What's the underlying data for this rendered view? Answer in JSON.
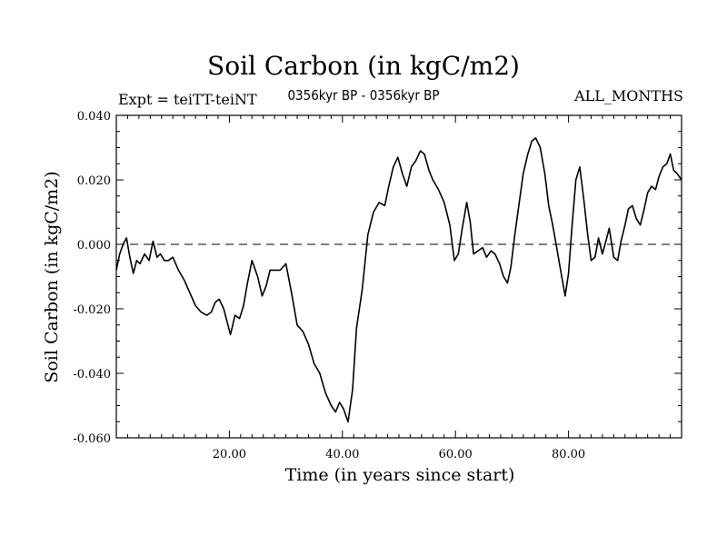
{
  "chart_data": {
    "type": "line",
    "title": "Soil Carbon (in kgC/m2)",
    "subtitle": "0356kyr BP - 0356kyr BP",
    "expt_label": "Expt = teiTT-teiNT",
    "period_label": "ALL_MONTHS",
    "xlabel": "Time (in years since start)",
    "ylabel": "Soil Carbon (in kgC/m2)",
    "xlim": [
      0,
      100
    ],
    "ylim": [
      -0.06,
      0.04
    ],
    "xticks": [
      20,
      40,
      60,
      80
    ],
    "xtick_labels": [
      "20.00",
      "40.00",
      "60.00",
      "80.00"
    ],
    "yticks": [
      0.04,
      0.02,
      0.0,
      -0.02,
      -0.04,
      -0.06
    ],
    "ytick_labels": [
      "0.040",
      "0.020",
      "0.000",
      "-0.020",
      "-0.040",
      "-0.060"
    ],
    "reference_line": {
      "y": 0.0,
      "style": "dashed"
    },
    "series": [
      {
        "name": "Soil Carbon",
        "x": [
          0,
          0.6,
          1.2,
          1.8,
          2.4,
          3.0,
          3.6,
          4.2,
          5.0,
          5.8,
          6.5,
          7.2,
          7.8,
          8.5,
          9.2,
          10.0,
          11.0,
          12.0,
          13.0,
          14.0,
          15.0,
          16.0,
          16.8,
          17.5,
          18.2,
          19.0,
          19.6,
          20.2,
          21.0,
          21.8,
          22.5,
          23.2,
          24.0,
          25.0,
          25.8,
          26.5,
          27.2,
          28.0,
          29.0,
          30.0,
          31.0,
          32.0,
          33.0,
          34.0,
          35.0,
          36.0,
          37.0,
          38.0,
          38.8,
          39.5,
          40.2,
          41.0,
          41.8,
          42.5,
          43.5,
          44.5,
          45.5,
          46.5,
          47.5,
          48.2,
          49.0,
          49.8,
          50.6,
          51.4,
          52.2,
          53.0,
          53.8,
          54.5,
          55.3,
          56.0,
          57.0,
          58.0,
          59.0,
          59.8,
          60.5,
          61.2,
          62.0,
          62.6,
          63.2,
          64.0,
          64.8,
          65.5,
          66.3,
          67.0,
          67.8,
          68.5,
          69.2,
          69.8,
          70.5,
          71.2,
          72.0,
          72.8,
          73.5,
          74.2,
          75.0,
          75.8,
          76.5,
          77.2,
          78.0,
          78.8,
          79.4,
          80.0,
          80.6,
          81.3,
          82.0,
          82.7,
          83.4,
          84.0,
          84.7,
          85.3,
          86.0,
          86.6,
          87.2,
          88.0,
          88.7,
          89.3,
          90.0,
          90.6,
          91.3,
          92.0,
          92.7,
          93.4,
          94.0,
          94.7,
          95.4,
          96.0,
          96.7,
          97.4,
          98.0,
          98.6,
          99.2,
          100.0
        ],
        "values": [
          -0.008,
          -0.003,
          0.0,
          0.002,
          -0.004,
          -0.009,
          -0.005,
          -0.006,
          -0.003,
          -0.005,
          0.001,
          -0.004,
          -0.003,
          -0.005,
          -0.005,
          -0.004,
          -0.008,
          -0.011,
          -0.015,
          -0.019,
          -0.021,
          -0.022,
          -0.021,
          -0.018,
          -0.017,
          -0.02,
          -0.024,
          -0.028,
          -0.022,
          -0.023,
          -0.019,
          -0.012,
          -0.005,
          -0.01,
          -0.016,
          -0.013,
          -0.008,
          -0.008,
          -0.008,
          -0.006,
          -0.015,
          -0.025,
          -0.027,
          -0.031,
          -0.037,
          -0.04,
          -0.046,
          -0.05,
          -0.052,
          -0.049,
          -0.051,
          -0.055,
          -0.045,
          -0.026,
          -0.014,
          0.003,
          0.01,
          0.013,
          0.012,
          0.018,
          0.024,
          0.027,
          0.022,
          0.018,
          0.024,
          0.026,
          0.029,
          0.028,
          0.023,
          0.02,
          0.017,
          0.013,
          0.006,
          -0.005,
          -0.003,
          0.005,
          0.013,
          0.007,
          -0.003,
          -0.002,
          -0.001,
          -0.004,
          -0.002,
          -0.003,
          -0.006,
          -0.01,
          -0.012,
          -0.007,
          0.003,
          0.012,
          0.022,
          0.028,
          0.032,
          0.033,
          0.03,
          0.022,
          0.012,
          0.006,
          -0.002,
          -0.01,
          -0.016,
          -0.009,
          0.005,
          0.02,
          0.024,
          0.014,
          0.003,
          -0.005,
          -0.004,
          0.002,
          -0.003,
          0.001,
          0.005,
          -0.004,
          -0.005,
          0.001,
          0.006,
          0.011,
          0.012,
          0.008,
          0.006,
          0.011,
          0.016,
          0.018,
          0.017,
          0.021,
          0.024,
          0.025,
          0.028,
          0.023,
          0.022,
          0.02
        ]
      }
    ]
  }
}
